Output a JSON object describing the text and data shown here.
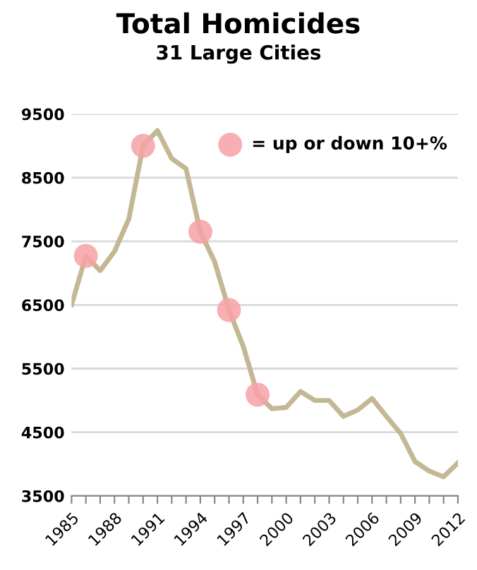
{
  "chart_data": {
    "type": "line",
    "title": "Total Homicides",
    "subtitle": "31 Large Cities",
    "x": [
      1985,
      1986,
      1987,
      1988,
      1989,
      1990,
      1991,
      1992,
      1993,
      1994,
      1995,
      1996,
      1997,
      1998,
      1999,
      2000,
      2001,
      2002,
      2003,
      2004,
      2005,
      2006,
      2007,
      2008,
      2009,
      2010,
      2011,
      2012
    ],
    "series": [
      {
        "marker": "none",
        "color": "#c4b894",
        "values": [
          6500,
          7270,
          7040,
          7340,
          7850,
          9000,
          9240,
          8800,
          8640,
          7650,
          7180,
          6420,
          5850,
          5090,
          4870,
          4890,
          5140,
          5000,
          5000,
          4750,
          4850,
          5030,
          4750,
          4480,
          4040,
          3890,
          3800,
          4020
        ]
      },
      {
        "type": "scatter",
        "marker": "circle",
        "name": "= up or down 10+%",
        "color": "#f7a1a6",
        "x": [
          1986,
          1990,
          1994,
          1996,
          1998
        ],
        "values": [
          7270,
          9000,
          7650,
          6420,
          5090
        ]
      }
    ],
    "xlim": [
      1985,
      2012
    ],
    "xticks": [
      1985,
      {
        "value": 1986,
        "label": null
      },
      {
        "value": 1987,
        "label": null
      },
      1988,
      {
        "value": 1989,
        "label": null
      },
      {
        "value": 1990,
        "label": null
      },
      1991,
      {
        "value": 1992,
        "label": null
      },
      {
        "value": 1993,
        "label": null
      },
      1994,
      {
        "value": 1995,
        "label": null
      },
      {
        "value": 1996,
        "label": null
      },
      1997,
      {
        "value": 1998,
        "label": null
      },
      {
        "value": 1999,
        "label": null
      },
      2000,
      {
        "value": 2001,
        "label": null
      },
      {
        "value": 2002,
        "label": null
      },
      2003,
      {
        "value": 2004,
        "label": null
      },
      {
        "value": 2005,
        "label": null
      },
      2006,
      {
        "value": 2007,
        "label": null
      },
      {
        "value": 2008,
        "label": null
      },
      2009,
      {
        "value": 2010,
        "label": null
      },
      {
        "value": 2011,
        "label": null
      },
      2012
    ],
    "ylim": [
      3500,
      9500
    ],
    "yticks": [
      3500,
      4500,
      5500,
      6500,
      7500,
      8500,
      9500
    ],
    "grid": "y",
    "legend": "top right",
    "line_style": "solid"
  }
}
